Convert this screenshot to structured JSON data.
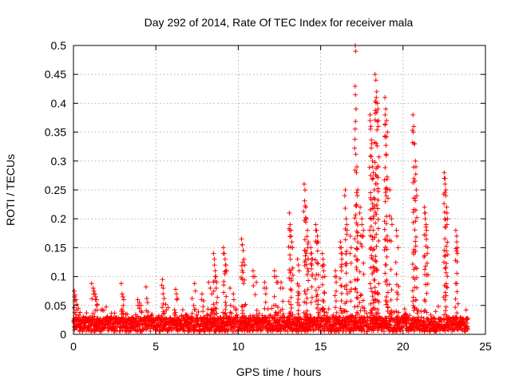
{
  "chart_data": {
    "type": "scatter",
    "title": "Day 292 of 2014, Rate Of TEC Index for receiver mala",
    "xlabel": "GPS time / hours",
    "ylabel": "ROTI / TECUs",
    "xlim": [
      0,
      25
    ],
    "ylim": [
      0,
      0.5
    ],
    "grid": true,
    "x_ticks": [
      0,
      5,
      10,
      15,
      20,
      25
    ],
    "x_tick_labels": [
      "0",
      "5",
      "10",
      "15",
      "20",
      "25"
    ],
    "y_ticks": [
      0,
      0.05,
      0.1,
      0.15,
      0.2,
      0.25,
      0.3,
      0.35,
      0.4,
      0.45,
      0.5
    ],
    "y_tick_labels": [
      "0",
      "0.05",
      "0.1",
      "0.15",
      "0.2",
      "0.25",
      "0.3",
      "0.35",
      "0.4",
      "0.45",
      "0.5"
    ],
    "marker": "+",
    "color": "#ff0000",
    "x_range_covered": [
      0,
      23.9
    ],
    "baseline_band": [
      0.005,
      0.03
    ],
    "series": [
      {
        "name": "ROTI",
        "points": [
          [
            0.05,
            0.075
          ],
          [
            0.1,
            0.068
          ],
          [
            0.15,
            0.06
          ],
          [
            0.2,
            0.052
          ],
          [
            0.3,
            0.045
          ],
          [
            0.4,
            0.038
          ],
          [
            1.1,
            0.088
          ],
          [
            1.2,
            0.08
          ],
          [
            1.25,
            0.075
          ],
          [
            1.3,
            0.07
          ],
          [
            1.35,
            0.065
          ],
          [
            1.4,
            0.06
          ],
          [
            1.45,
            0.052
          ],
          [
            2.9,
            0.088
          ],
          [
            2.95,
            0.07
          ],
          [
            3.0,
            0.065
          ],
          [
            3.05,
            0.06
          ],
          [
            3.9,
            0.06
          ],
          [
            4.0,
            0.055
          ],
          [
            4.1,
            0.05
          ],
          [
            4.4,
            0.082
          ],
          [
            4.45,
            0.062
          ],
          [
            4.5,
            0.055
          ],
          [
            5.4,
            0.095
          ],
          [
            5.45,
            0.08
          ],
          [
            5.5,
            0.062
          ],
          [
            5.6,
            0.052
          ],
          [
            6.2,
            0.078
          ],
          [
            6.25,
            0.07
          ],
          [
            6.3,
            0.062
          ],
          [
            7.2,
            0.062
          ],
          [
            7.3,
            0.05
          ],
          [
            7.35,
            0.088
          ],
          [
            7.4,
            0.075
          ],
          [
            7.8,
            0.07
          ],
          [
            7.9,
            0.058
          ],
          [
            8.2,
            0.09
          ],
          [
            8.3,
            0.08
          ],
          [
            8.4,
            0.07
          ],
          [
            8.5,
            0.14
          ],
          [
            8.55,
            0.13
          ],
          [
            8.6,
            0.11
          ],
          [
            8.65,
            0.1
          ],
          [
            8.7,
            0.09
          ],
          [
            9.1,
            0.15
          ],
          [
            9.15,
            0.14
          ],
          [
            9.2,
            0.13
          ],
          [
            9.25,
            0.12
          ],
          [
            9.3,
            0.11
          ],
          [
            9.5,
            0.08
          ],
          [
            9.7,
            0.07
          ],
          [
            10.2,
            0.165
          ],
          [
            10.25,
            0.155
          ],
          [
            10.3,
            0.145
          ],
          [
            10.35,
            0.13
          ],
          [
            10.4,
            0.12
          ],
          [
            10.9,
            0.11
          ],
          [
            11.0,
            0.1
          ],
          [
            11.1,
            0.09
          ],
          [
            11.6,
            0.09
          ],
          [
            11.7,
            0.08
          ],
          [
            12.2,
            0.11
          ],
          [
            12.3,
            0.1
          ],
          [
            12.4,
            0.09
          ],
          [
            12.6,
            0.09
          ],
          [
            12.7,
            0.08
          ],
          [
            13.1,
            0.21
          ],
          [
            13.15,
            0.19
          ],
          [
            13.2,
            0.18
          ],
          [
            13.25,
            0.16
          ],
          [
            13.3,
            0.15
          ],
          [
            13.6,
            0.13
          ],
          [
            13.65,
            0.12
          ],
          [
            13.7,
            0.11
          ],
          [
            14.0,
            0.26
          ],
          [
            14.05,
            0.25
          ],
          [
            14.1,
            0.22
          ],
          [
            14.15,
            0.2
          ],
          [
            14.2,
            0.18
          ],
          [
            14.25,
            0.16
          ],
          [
            14.4,
            0.15
          ],
          [
            14.45,
            0.14
          ],
          [
            14.5,
            0.13
          ],
          [
            14.7,
            0.19
          ],
          [
            14.75,
            0.18
          ],
          [
            14.8,
            0.17
          ],
          [
            14.85,
            0.16
          ],
          [
            15.1,
            0.14
          ],
          [
            15.15,
            0.13
          ],
          [
            15.2,
            0.12
          ],
          [
            15.25,
            0.1
          ],
          [
            15.9,
            0.11
          ],
          [
            15.95,
            0.1
          ],
          [
            16.2,
            0.16
          ],
          [
            16.25,
            0.15
          ],
          [
            16.3,
            0.14
          ],
          [
            16.5,
            0.25
          ],
          [
            16.55,
            0.2
          ],
          [
            16.6,
            0.18
          ],
          [
            16.8,
            0.17
          ],
          [
            16.85,
            0.15
          ],
          [
            17.1,
            0.5
          ],
          [
            17.15,
            0.39
          ],
          [
            17.2,
            0.29
          ],
          [
            17.25,
            0.25
          ],
          [
            17.4,
            0.22
          ],
          [
            17.5,
            0.2
          ],
          [
            17.6,
            0.18
          ],
          [
            18.0,
            0.38
          ],
          [
            18.05,
            0.36
          ],
          [
            18.1,
            0.33
          ],
          [
            18.15,
            0.3
          ],
          [
            18.2,
            0.28
          ],
          [
            18.25,
            0.25
          ],
          [
            18.3,
            0.45
          ],
          [
            18.35,
            0.44
          ],
          [
            18.4,
            0.42
          ],
          [
            18.45,
            0.4
          ],
          [
            18.5,
            0.37
          ],
          [
            18.9,
            0.41
          ],
          [
            18.95,
            0.39
          ],
          [
            19.0,
            0.37
          ],
          [
            19.05,
            0.35
          ],
          [
            19.2,
            0.25
          ],
          [
            19.3,
            0.2
          ],
          [
            19.6,
            0.18
          ],
          [
            19.7,
            0.15
          ],
          [
            20.6,
            0.38
          ],
          [
            20.65,
            0.36
          ],
          [
            20.7,
            0.33
          ],
          [
            20.75,
            0.3
          ],
          [
            20.8,
            0.25
          ],
          [
            21.3,
            0.22
          ],
          [
            21.35,
            0.21
          ],
          [
            21.4,
            0.19
          ],
          [
            21.5,
            0.15
          ],
          [
            22.5,
            0.28
          ],
          [
            22.55,
            0.27
          ],
          [
            22.6,
            0.25
          ],
          [
            22.65,
            0.22
          ],
          [
            22.7,
            0.2
          ],
          [
            23.2,
            0.18
          ],
          [
            23.25,
            0.17
          ],
          [
            23.3,
            0.15
          ]
        ]
      }
    ]
  }
}
